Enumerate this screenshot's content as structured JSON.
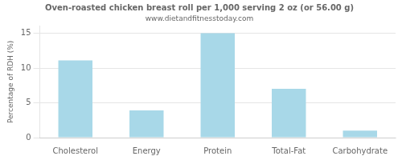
{
  "chart_data": {
    "type": "bar",
    "title": "Oven-roasted chicken breast roll per 1,000 serving 2 oz (or 56.00 g)",
    "subtitle": "www.dietandfitnesstoday.com",
    "categories": [
      "Cholesterol",
      "Energy",
      "Protein",
      "Total-Fat",
      "Carbohydrate"
    ],
    "values": [
      11.1,
      3.9,
      15.0,
      7.0,
      1.0
    ],
    "color": "#a8d8e8",
    "ylabel": "Percentage of RDH (%)",
    "ylim": [
      0,
      16
    ],
    "yticks": [
      0,
      5,
      10,
      15
    ],
    "grid": true
  }
}
